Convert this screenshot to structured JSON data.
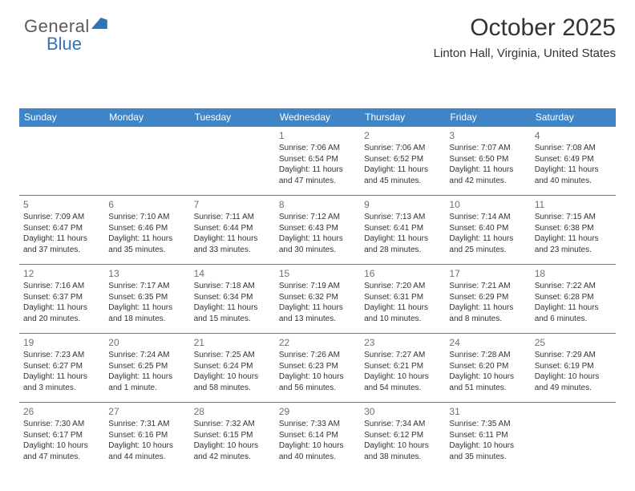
{
  "logo": {
    "general": "General",
    "blue": "Blue"
  },
  "title": "October 2025",
  "location": "Linton Hall, Virginia, United States",
  "headers": [
    "Sunday",
    "Monday",
    "Tuesday",
    "Wednesday",
    "Thursday",
    "Friday",
    "Saturday"
  ],
  "colors": {
    "header_bg": "#3d85c6",
    "header_text": "#ffffff",
    "rule": "#3d85c6",
    "daynum": "#707070",
    "text": "#333333",
    "logo_gray": "#5a5a5a",
    "logo_blue": "#2f75b5",
    "background": "#ffffff"
  },
  "weeks": [
    [
      {
        "day": "",
        "sunrise": "",
        "sunset": "",
        "daylight": ""
      },
      {
        "day": "",
        "sunrise": "",
        "sunset": "",
        "daylight": ""
      },
      {
        "day": "",
        "sunrise": "",
        "sunset": "",
        "daylight": ""
      },
      {
        "day": "1",
        "sunrise": "Sunrise: 7:06 AM",
        "sunset": "Sunset: 6:54 PM",
        "daylight": "Daylight: 11 hours and 47 minutes."
      },
      {
        "day": "2",
        "sunrise": "Sunrise: 7:06 AM",
        "sunset": "Sunset: 6:52 PM",
        "daylight": "Daylight: 11 hours and 45 minutes."
      },
      {
        "day": "3",
        "sunrise": "Sunrise: 7:07 AM",
        "sunset": "Sunset: 6:50 PM",
        "daylight": "Daylight: 11 hours and 42 minutes."
      },
      {
        "day": "4",
        "sunrise": "Sunrise: 7:08 AM",
        "sunset": "Sunset: 6:49 PM",
        "daylight": "Daylight: 11 hours and 40 minutes."
      }
    ],
    [
      {
        "day": "5",
        "sunrise": "Sunrise: 7:09 AM",
        "sunset": "Sunset: 6:47 PM",
        "daylight": "Daylight: 11 hours and 37 minutes."
      },
      {
        "day": "6",
        "sunrise": "Sunrise: 7:10 AM",
        "sunset": "Sunset: 6:46 PM",
        "daylight": "Daylight: 11 hours and 35 minutes."
      },
      {
        "day": "7",
        "sunrise": "Sunrise: 7:11 AM",
        "sunset": "Sunset: 6:44 PM",
        "daylight": "Daylight: 11 hours and 33 minutes."
      },
      {
        "day": "8",
        "sunrise": "Sunrise: 7:12 AM",
        "sunset": "Sunset: 6:43 PM",
        "daylight": "Daylight: 11 hours and 30 minutes."
      },
      {
        "day": "9",
        "sunrise": "Sunrise: 7:13 AM",
        "sunset": "Sunset: 6:41 PM",
        "daylight": "Daylight: 11 hours and 28 minutes."
      },
      {
        "day": "10",
        "sunrise": "Sunrise: 7:14 AM",
        "sunset": "Sunset: 6:40 PM",
        "daylight": "Daylight: 11 hours and 25 minutes."
      },
      {
        "day": "11",
        "sunrise": "Sunrise: 7:15 AM",
        "sunset": "Sunset: 6:38 PM",
        "daylight": "Daylight: 11 hours and 23 minutes."
      }
    ],
    [
      {
        "day": "12",
        "sunrise": "Sunrise: 7:16 AM",
        "sunset": "Sunset: 6:37 PM",
        "daylight": "Daylight: 11 hours and 20 minutes."
      },
      {
        "day": "13",
        "sunrise": "Sunrise: 7:17 AM",
        "sunset": "Sunset: 6:35 PM",
        "daylight": "Daylight: 11 hours and 18 minutes."
      },
      {
        "day": "14",
        "sunrise": "Sunrise: 7:18 AM",
        "sunset": "Sunset: 6:34 PM",
        "daylight": "Daylight: 11 hours and 15 minutes."
      },
      {
        "day": "15",
        "sunrise": "Sunrise: 7:19 AM",
        "sunset": "Sunset: 6:32 PM",
        "daylight": "Daylight: 11 hours and 13 minutes."
      },
      {
        "day": "16",
        "sunrise": "Sunrise: 7:20 AM",
        "sunset": "Sunset: 6:31 PM",
        "daylight": "Daylight: 11 hours and 10 minutes."
      },
      {
        "day": "17",
        "sunrise": "Sunrise: 7:21 AM",
        "sunset": "Sunset: 6:29 PM",
        "daylight": "Daylight: 11 hours and 8 minutes."
      },
      {
        "day": "18",
        "sunrise": "Sunrise: 7:22 AM",
        "sunset": "Sunset: 6:28 PM",
        "daylight": "Daylight: 11 hours and 6 minutes."
      }
    ],
    [
      {
        "day": "19",
        "sunrise": "Sunrise: 7:23 AM",
        "sunset": "Sunset: 6:27 PM",
        "daylight": "Daylight: 11 hours and 3 minutes."
      },
      {
        "day": "20",
        "sunrise": "Sunrise: 7:24 AM",
        "sunset": "Sunset: 6:25 PM",
        "daylight": "Daylight: 11 hours and 1 minute."
      },
      {
        "day": "21",
        "sunrise": "Sunrise: 7:25 AM",
        "sunset": "Sunset: 6:24 PM",
        "daylight": "Daylight: 10 hours and 58 minutes."
      },
      {
        "day": "22",
        "sunrise": "Sunrise: 7:26 AM",
        "sunset": "Sunset: 6:23 PM",
        "daylight": "Daylight: 10 hours and 56 minutes."
      },
      {
        "day": "23",
        "sunrise": "Sunrise: 7:27 AM",
        "sunset": "Sunset: 6:21 PM",
        "daylight": "Daylight: 10 hours and 54 minutes."
      },
      {
        "day": "24",
        "sunrise": "Sunrise: 7:28 AM",
        "sunset": "Sunset: 6:20 PM",
        "daylight": "Daylight: 10 hours and 51 minutes."
      },
      {
        "day": "25",
        "sunrise": "Sunrise: 7:29 AM",
        "sunset": "Sunset: 6:19 PM",
        "daylight": "Daylight: 10 hours and 49 minutes."
      }
    ],
    [
      {
        "day": "26",
        "sunrise": "Sunrise: 7:30 AM",
        "sunset": "Sunset: 6:17 PM",
        "daylight": "Daylight: 10 hours and 47 minutes."
      },
      {
        "day": "27",
        "sunrise": "Sunrise: 7:31 AM",
        "sunset": "Sunset: 6:16 PM",
        "daylight": "Daylight: 10 hours and 44 minutes."
      },
      {
        "day": "28",
        "sunrise": "Sunrise: 7:32 AM",
        "sunset": "Sunset: 6:15 PM",
        "daylight": "Daylight: 10 hours and 42 minutes."
      },
      {
        "day": "29",
        "sunrise": "Sunrise: 7:33 AM",
        "sunset": "Sunset: 6:14 PM",
        "daylight": "Daylight: 10 hours and 40 minutes."
      },
      {
        "day": "30",
        "sunrise": "Sunrise: 7:34 AM",
        "sunset": "Sunset: 6:12 PM",
        "daylight": "Daylight: 10 hours and 38 minutes."
      },
      {
        "day": "31",
        "sunrise": "Sunrise: 7:35 AM",
        "sunset": "Sunset: 6:11 PM",
        "daylight": "Daylight: 10 hours and 35 minutes."
      },
      {
        "day": "",
        "sunrise": "",
        "sunset": "",
        "daylight": ""
      }
    ]
  ]
}
